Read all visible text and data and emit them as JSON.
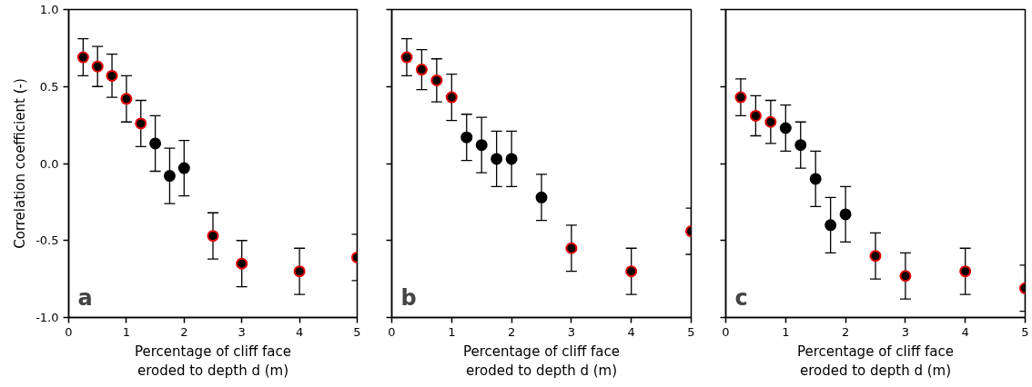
{
  "chart_data": [
    {
      "type": "scatter",
      "xlabel": "Percentage of cliff face\neroded to depth d (m)",
      "ylabel": "Correlation coefficient (-)",
      "annotations": [
        "a"
      ],
      "xlim": [
        0,
        5
      ],
      "ylim": [
        -1,
        1
      ],
      "xticks": [
        0,
        1,
        2,
        3,
        4,
        5
      ],
      "yticks": [
        {
          "value": -1,
          "label": "-1.0"
        },
        {
          "value": -0.5,
          "label": "-0.5"
        },
        {
          "value": 0,
          "label": "0.0"
        },
        {
          "value": 0.5,
          "label": "0.5"
        },
        {
          "value": 1,
          "label": "1.0"
        }
      ],
      "grid": false,
      "marker": "circle",
      "series": [
        {
          "color": "#e00000",
          "x": [
            0.25,
            0.5,
            0.75,
            1,
            1.25,
            2.5,
            3,
            4,
            5
          ],
          "values": [
            0.69,
            0.63,
            0.57,
            0.42,
            0.26,
            -0.47,
            -0.65,
            -0.7,
            -0.61
          ],
          "errors": [
            0.12,
            0.13,
            0.14,
            0.15,
            0.15,
            0.15,
            0.15,
            0.15,
            0.15
          ]
        },
        {
          "color": "#000000",
          "x": [
            1.5,
            1.75,
            2
          ],
          "values": [
            0.13,
            -0.08,
            -0.03
          ],
          "errors": [
            0.18,
            0.18,
            0.18
          ]
        }
      ]
    },
    {
      "type": "scatter",
      "xlabel": "Percentage of cliff face\neroded to depth d (m)",
      "annotations": [
        "b"
      ],
      "xlim": [
        0,
        5
      ],
      "ylim": [
        -1,
        1
      ],
      "xticks": [
        0,
        1,
        2,
        3,
        4,
        5
      ],
      "yticks": [
        -1,
        -0.5,
        0,
        0.5,
        1
      ],
      "tick_labels": "x",
      "grid": false,
      "marker": "circle",
      "series": [
        {
          "color": "#e00000",
          "x": [
            0.25,
            0.5,
            0.75,
            1,
            3,
            4,
            5
          ],
          "values": [
            0.69,
            0.61,
            0.54,
            0.43,
            -0.55,
            -0.7,
            -0.44
          ],
          "errors": [
            0.12,
            0.13,
            0.14,
            0.15,
            0.15,
            0.15,
            0.15
          ]
        },
        {
          "color": "#000000",
          "x": [
            1.25,
            1.5,
            1.75,
            2,
            2.5
          ],
          "values": [
            0.17,
            0.12,
            0.03,
            0.03,
            -0.22
          ],
          "errors": [
            0.15,
            0.18,
            0.18,
            0.18,
            0.15
          ]
        }
      ]
    },
    {
      "type": "scatter",
      "xlabel": "Percentage of cliff face\neroded to depth d (m)",
      "annotations": [
        "c"
      ],
      "xlim": [
        0,
        5
      ],
      "ylim": [
        -1,
        1
      ],
      "xticks": [
        0,
        1,
        2,
        3,
        4,
        5
      ],
      "yticks": [
        -1,
        -0.5,
        0,
        0.5,
        1
      ],
      "tick_labels": "x",
      "grid": false,
      "marker": "circle",
      "series": [
        {
          "color": "#e00000",
          "x": [
            0.25,
            0.5,
            0.75,
            2.5,
            3,
            4,
            5
          ],
          "values": [
            0.43,
            0.31,
            0.27,
            -0.6,
            -0.73,
            -0.7,
            -0.81
          ],
          "errors": [
            0.12,
            0.13,
            0.14,
            0.15,
            0.15,
            0.15,
            0.15
          ]
        },
        {
          "color": "#000000",
          "x": [
            1,
            1.25,
            1.5,
            1.75,
            2
          ],
          "values": [
            0.23,
            0.12,
            -0.1,
            -0.4,
            -0.33
          ],
          "errors": [
            0.15,
            0.15,
            0.18,
            0.18,
            0.18
          ]
        }
      ]
    }
  ]
}
